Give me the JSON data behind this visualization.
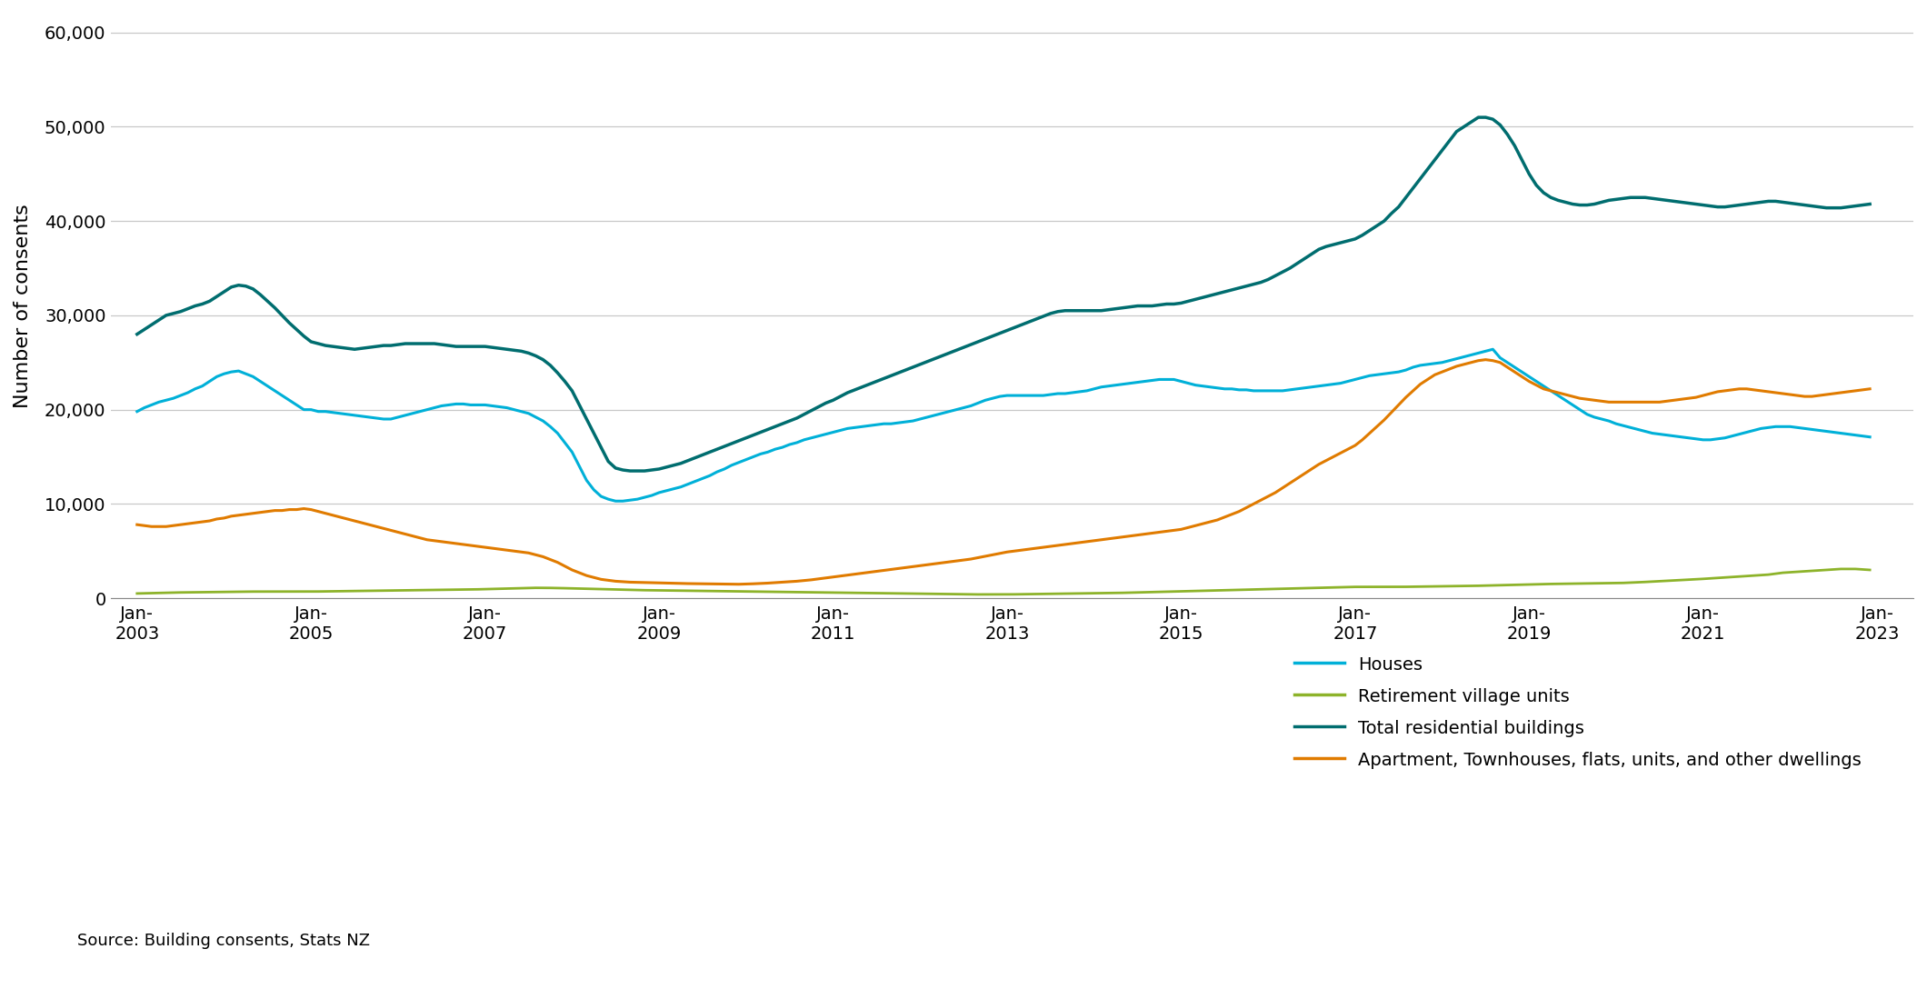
{
  "ylabel": "Number of consents",
  "source_text": "Source: Building consents, Stats NZ",
  "background_color": "#ffffff",
  "grid_color": "#c8c8c8",
  "ylim": [
    0,
    62000
  ],
  "yticks": [
    0,
    10000,
    20000,
    30000,
    40000,
    50000,
    60000
  ],
  "series": {
    "houses": {
      "label": "Houses",
      "color": "#00b0d8",
      "linewidth": 2.2
    },
    "retirement": {
      "label": "Retirement village units",
      "color": "#8db32a",
      "linewidth": 2.0
    },
    "total": {
      "label": "Total residential buildings",
      "color": "#006d6f",
      "linewidth": 2.5
    },
    "apartments": {
      "label": "Apartment, Townhouses, flats, units, and other dwellings",
      "color": "#e07b00",
      "linewidth": 2.2
    }
  },
  "xtick_years": [
    2003,
    2005,
    2007,
    2009,
    2011,
    2013,
    2015,
    2017,
    2019,
    2021,
    2023
  ],
  "start_year": 2003,
  "houses": [
    19800,
    20200,
    20500,
    20800,
    21000,
    21200,
    21500,
    21800,
    22200,
    22500,
    23000,
    23500,
    23800,
    24000,
    24100,
    23800,
    23500,
    23000,
    22500,
    22000,
    21500,
    21000,
    20500,
    20000,
    20000,
    19800,
    19800,
    19700,
    19600,
    19500,
    19400,
    19300,
    19200,
    19100,
    19000,
    19000,
    19200,
    19400,
    19600,
    19800,
    20000,
    20200,
    20400,
    20500,
    20600,
    20600,
    20500,
    20500,
    20500,
    20400,
    20300,
    20200,
    20000,
    19800,
    19600,
    19200,
    18800,
    18200,
    17500,
    16500,
    15500,
    14000,
    12500,
    11500,
    10800,
    10500,
    10300,
    10300,
    10400,
    10500,
    10700,
    10900,
    11200,
    11400,
    11600,
    11800,
    12100,
    12400,
    12700,
    13000,
    13400,
    13700,
    14100,
    14400,
    14700,
    15000,
    15300,
    15500,
    15800,
    16000,
    16300,
    16500,
    16800,
    17000,
    17200,
    17400,
    17600,
    17800,
    18000,
    18100,
    18200,
    18300,
    18400,
    18500,
    18500,
    18600,
    18700,
    18800,
    19000,
    19200,
    19400,
    19600,
    19800,
    20000,
    20200,
    20400,
    20700,
    21000,
    21200,
    21400,
    21500,
    21500,
    21500,
    21500,
    21500,
    21500,
    21600,
    21700,
    21700,
    21800,
    21900,
    22000,
    22200,
    22400,
    22500,
    22600,
    22700,
    22800,
    22900,
    23000,
    23100,
    23200,
    23200,
    23200,
    23000,
    22800,
    22600,
    22500,
    22400,
    22300,
    22200,
    22200,
    22100,
    22100,
    22000,
    22000,
    22000,
    22000,
    22000,
    22100,
    22200,
    22300,
    22400,
    22500,
    22600,
    22700,
    22800,
    23000,
    23200,
    23400,
    23600,
    23700,
    23800,
    23900,
    24000,
    24200,
    24500,
    24700,
    24800,
    24900,
    25000,
    25200,
    25400,
    25600,
    25800,
    26000,
    26200,
    26400,
    25500,
    25000,
    24500,
    24000,
    23500,
    23000,
    22500,
    22000,
    21500,
    21000,
    20500,
    20000,
    19500,
    19200,
    19000,
    18800,
    18500,
    18300,
    18100,
    17900,
    17700,
    17500,
    17400,
    17300,
    17200,
    17100,
    17000,
    16900,
    16800,
    16800,
    16900,
    17000,
    17200,
    17400,
    17600,
    17800,
    18000,
    18100,
    18200,
    18200,
    18200,
    18100,
    18000,
    17900,
    17800,
    17700,
    17600,
    17500,
    17400,
    17300,
    17200,
    17100
  ],
  "retirement": [
    500,
    520,
    540,
    560,
    580,
    600,
    610,
    620,
    630,
    640,
    650,
    660,
    670,
    680,
    690,
    700,
    700,
    700,
    700,
    700,
    700,
    700,
    700,
    700,
    700,
    710,
    720,
    730,
    740,
    750,
    760,
    770,
    780,
    790,
    800,
    810,
    820,
    830,
    840,
    850,
    860,
    870,
    880,
    890,
    900,
    910,
    920,
    940,
    960,
    980,
    1000,
    1020,
    1040,
    1060,
    1080,
    1100,
    1100,
    1090,
    1080,
    1060,
    1040,
    1020,
    1000,
    980,
    960,
    940,
    920,
    900,
    880,
    860,
    850,
    840,
    830,
    820,
    810,
    800,
    790,
    780,
    770,
    760,
    750,
    740,
    730,
    720,
    710,
    700,
    690,
    680,
    670,
    660,
    650,
    640,
    630,
    620,
    610,
    600,
    590,
    580,
    570,
    560,
    550,
    540,
    530,
    520,
    510,
    500,
    490,
    480,
    470,
    460,
    450,
    440,
    430,
    420,
    410,
    400,
    400,
    400,
    400,
    400,
    400,
    410,
    420,
    430,
    440,
    450,
    460,
    470,
    480,
    490,
    500,
    510,
    520,
    530,
    540,
    550,
    570,
    590,
    610,
    630,
    650,
    670,
    690,
    710,
    730,
    750,
    770,
    790,
    810,
    830,
    850,
    870,
    890,
    910,
    930,
    950,
    970,
    990,
    1010,
    1030,
    1050,
    1070,
    1090,
    1110,
    1130,
    1150,
    1170,
    1190,
    1200,
    1200,
    1200,
    1200,
    1200,
    1200,
    1200,
    1210,
    1220,
    1230,
    1240,
    1250,
    1260,
    1270,
    1280,
    1290,
    1300,
    1320,
    1340,
    1360,
    1380,
    1400,
    1420,
    1440,
    1460,
    1480,
    1500,
    1510,
    1520,
    1530,
    1540,
    1550,
    1560,
    1570,
    1580,
    1590,
    1600,
    1620,
    1650,
    1680,
    1720,
    1760,
    1800,
    1840,
    1880,
    1920,
    1960,
    2000,
    2050,
    2100,
    2150,
    2200,
    2250,
    2300,
    2350,
    2400,
    2450,
    2500,
    2600,
    2700,
    2750,
    2800,
    2850,
    2900,
    2950,
    3000,
    3050,
    3100,
    3100,
    3100,
    3050,
    3000
  ],
  "total": [
    28000,
    28500,
    29000,
    29500,
    30000,
    30200,
    30400,
    30700,
    31000,
    31200,
    31500,
    32000,
    32500,
    33000,
    33200,
    33100,
    32800,
    32200,
    31500,
    30800,
    30000,
    29200,
    28500,
    27800,
    27200,
    27000,
    26800,
    26700,
    26600,
    26500,
    26400,
    26500,
    26600,
    26700,
    26800,
    26800,
    26900,
    27000,
    27000,
    27000,
    27000,
    27000,
    26900,
    26800,
    26700,
    26700,
    26700,
    26700,
    26700,
    26600,
    26500,
    26400,
    26300,
    26200,
    26000,
    25700,
    25300,
    24700,
    23900,
    23000,
    22000,
    20500,
    19000,
    17500,
    16000,
    14500,
    13800,
    13600,
    13500,
    13500,
    13500,
    13600,
    13700,
    13900,
    14100,
    14300,
    14600,
    14900,
    15200,
    15500,
    15800,
    16100,
    16400,
    16700,
    17000,
    17300,
    17600,
    17900,
    18200,
    18500,
    18800,
    19100,
    19500,
    19900,
    20300,
    20700,
    21000,
    21400,
    21800,
    22100,
    22400,
    22700,
    23000,
    23300,
    23600,
    23900,
    24200,
    24500,
    24800,
    25100,
    25400,
    25700,
    26000,
    26300,
    26600,
    26900,
    27200,
    27500,
    27800,
    28100,
    28400,
    28700,
    29000,
    29300,
    29600,
    29900,
    30200,
    30400,
    30500,
    30500,
    30500,
    30500,
    30500,
    30500,
    30600,
    30700,
    30800,
    30900,
    31000,
    31000,
    31000,
    31100,
    31200,
    31200,
    31300,
    31500,
    31700,
    31900,
    32100,
    32300,
    32500,
    32700,
    32900,
    33100,
    33300,
    33500,
    33800,
    34200,
    34600,
    35000,
    35500,
    36000,
    36500,
    37000,
    37300,
    37500,
    37700,
    37900,
    38100,
    38500,
    39000,
    39500,
    40000,
    40800,
    41500,
    42500,
    43500,
    44500,
    45500,
    46500,
    47500,
    48500,
    49500,
    50000,
    50500,
    51000,
    51000,
    50800,
    50200,
    49200,
    48000,
    46500,
    45000,
    43800,
    43000,
    42500,
    42200,
    42000,
    41800,
    41700,
    41700,
    41800,
    42000,
    42200,
    42300,
    42400,
    42500,
    42500,
    42500,
    42400,
    42300,
    42200,
    42100,
    42000,
    41900,
    41800,
    41700,
    41600,
    41500,
    41500,
    41600,
    41700,
    41800,
    41900,
    42000,
    42100,
    42100,
    42000,
    41900,
    41800,
    41700,
    41600,
    41500,
    41400,
    41400,
    41400,
    41500,
    41600,
    41700,
    41800
  ],
  "apartments": [
    7800,
    7700,
    7600,
    7600,
    7600,
    7700,
    7800,
    7900,
    8000,
    8100,
    8200,
    8400,
    8500,
    8700,
    8800,
    8900,
    9000,
    9100,
    9200,
    9300,
    9300,
    9400,
    9400,
    9500,
    9400,
    9200,
    9000,
    8800,
    8600,
    8400,
    8200,
    8000,
    7800,
    7600,
    7400,
    7200,
    7000,
    6800,
    6600,
    6400,
    6200,
    6100,
    6000,
    5900,
    5800,
    5700,
    5600,
    5500,
    5400,
    5300,
    5200,
    5100,
    5000,
    4900,
    4800,
    4600,
    4400,
    4100,
    3800,
    3400,
    3000,
    2700,
    2400,
    2200,
    2000,
    1900,
    1800,
    1750,
    1700,
    1680,
    1650,
    1640,
    1620,
    1600,
    1580,
    1560,
    1550,
    1540,
    1530,
    1520,
    1510,
    1500,
    1490,
    1480,
    1500,
    1530,
    1560,
    1600,
    1650,
    1700,
    1750,
    1800,
    1870,
    1950,
    2050,
    2150,
    2250,
    2350,
    2450,
    2550,
    2650,
    2750,
    2850,
    2950,
    3050,
    3150,
    3250,
    3350,
    3450,
    3550,
    3650,
    3750,
    3850,
    3950,
    4050,
    4150,
    4300,
    4450,
    4600,
    4750,
    4900,
    5000,
    5100,
    5200,
    5300,
    5400,
    5500,
    5600,
    5700,
    5800,
    5900,
    6000,
    6100,
    6200,
    6300,
    6400,
    6500,
    6600,
    6700,
    6800,
    6900,
    7000,
    7100,
    7200,
    7300,
    7500,
    7700,
    7900,
    8100,
    8300,
    8600,
    8900,
    9200,
    9600,
    10000,
    10400,
    10800,
    11200,
    11700,
    12200,
    12700,
    13200,
    13700,
    14200,
    14600,
    15000,
    15400,
    15800,
    16200,
    16800,
    17500,
    18200,
    18900,
    19700,
    20500,
    21300,
    22000,
    22700,
    23200,
    23700,
    24000,
    24300,
    24600,
    24800,
    25000,
    25200,
    25300,
    25200,
    25000,
    24500,
    24000,
    23500,
    23000,
    22600,
    22200,
    22000,
    21800,
    21600,
    21400,
    21200,
    21100,
    21000,
    20900,
    20800,
    20800,
    20800,
    20800,
    20800,
    20800,
    20800,
    20800,
    20900,
    21000,
    21100,
    21200,
    21300,
    21500,
    21700,
    21900,
    22000,
    22100,
    22200,
    22200,
    22100,
    22000,
    21900,
    21800,
    21700,
    21600,
    21500,
    21400,
    21400,
    21500,
    21600,
    21700,
    21800,
    21900,
    22000,
    22100,
    22200
  ]
}
